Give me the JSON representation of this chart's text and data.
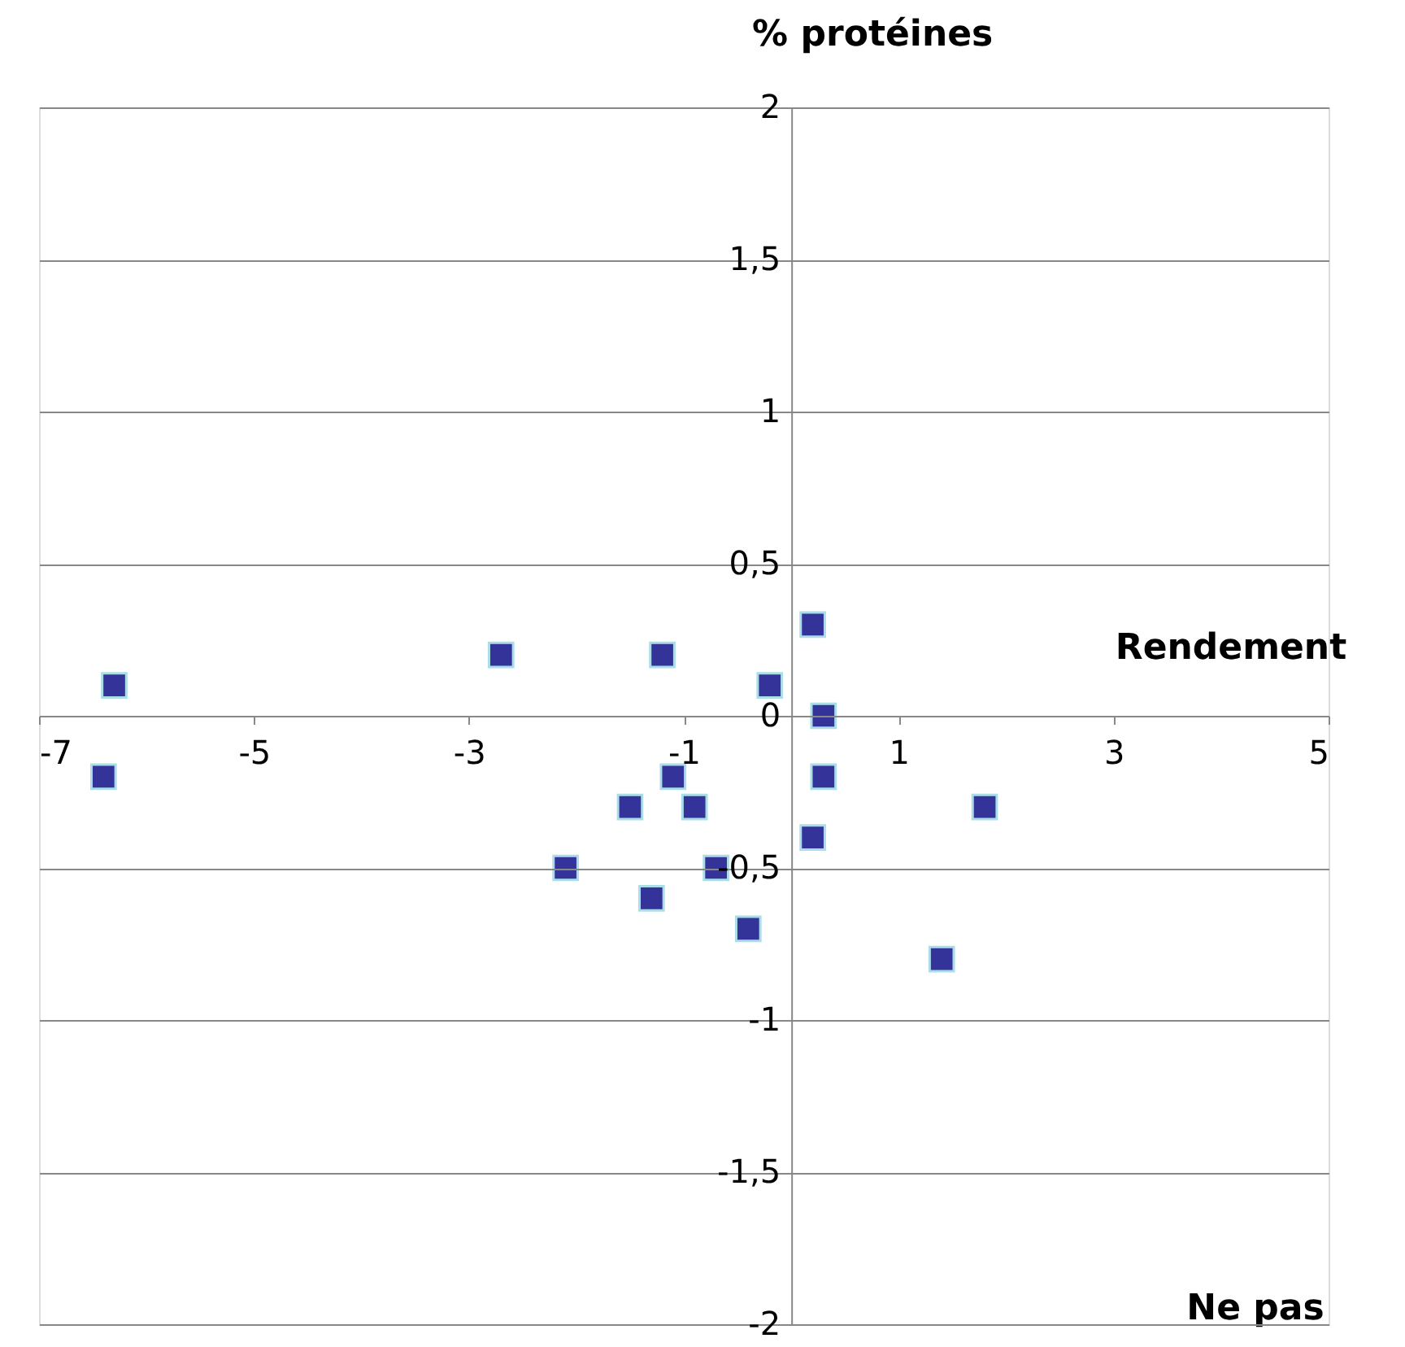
{
  "chart_data": {
    "type": "scatter",
    "xlabel": "Rendement",
    "ylabel": "% protéines",
    "x": [
      -6.3,
      -6.4,
      -2.7,
      -1.2,
      0.2,
      -0.2,
      0.3,
      0.3,
      -1.1,
      -1.5,
      -0.9,
      1.8,
      -2.1,
      -0.7,
      0.2,
      -1.3,
      -0.4,
      1.4
    ],
    "series": [
      {
        "color": "#333399",
        "values": [
          0.1,
          -0.2,
          0.2,
          0.2,
          0.3,
          0.1,
          0,
          -0.2,
          -0.2,
          -0.3,
          -0.3,
          -0.3,
          -0.5,
          -0.5,
          -0.4,
          -0.6,
          -0.7,
          -0.8
        ]
      }
    ],
    "xlim": [
      -7,
      5
    ],
    "xticks": [
      -7,
      -5,
      -3,
      -1,
      1,
      3,
      5
    ],
    "ylim": [
      -2,
      2
    ],
    "yticks": [
      -2,
      {
        "value": -1.5,
        "label": "-1,5"
      },
      -1,
      {
        "value": -0.5,
        "label": "-0,5"
      },
      0,
      {
        "value": 0.5,
        "label": "0,5"
      },
      1,
      {
        "value": 1.5,
        "label": "1,5"
      },
      2
    ],
    "grid": "y",
    "marker": "square",
    "annotations": [
      "Ne pas"
    ]
  }
}
